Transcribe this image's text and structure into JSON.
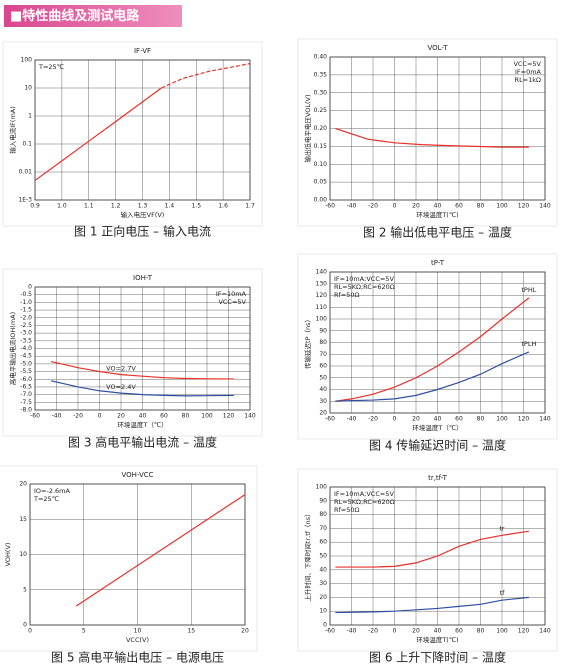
{
  "header": {
    "title": "■特性曲线及测试电路"
  },
  "chart_data": [
    {
      "type": "line",
      "title": "IF-VF",
      "caption": "图 1 正向电压 – 输入电流",
      "xlabel": "输入电压VF(V)",
      "ylabel": "输入电流IF(mA)",
      "annotations": [
        "T=25℃"
      ],
      "ylog": true,
      "grid": true,
      "x": [
        0.9,
        1.0,
        1.1,
        1.2,
        1.3,
        1.37,
        1.45,
        1.55,
        1.65,
        1.7
      ],
      "series": [
        {
          "color": "#e8302a",
          "style": "solid",
          "values": [
            0.005,
            0.025,
            0.126,
            0.63,
            3.2,
            10,
            null,
            null,
            null,
            null
          ]
        },
        {
          "color": "#e8302a",
          "style": "dashed",
          "values": [
            null,
            null,
            null,
            null,
            null,
            10,
            22,
            40,
            60,
            75
          ]
        }
      ],
      "xlim": [
        0.9,
        1.7
      ],
      "ylim": [
        0.001,
        100
      ],
      "xticks": [
        0.9,
        {
          "value": 1,
          "label": "1.0"
        },
        1.1,
        1.2,
        1.3,
        1.4,
        1.5,
        1.6,
        1.7
      ],
      "yticks": [
        {
          "value": 0.001,
          "label": "1E-3"
        },
        0.01,
        0.1,
        1,
        10,
        100
      ]
    },
    {
      "type": "line",
      "title": "VOL-T",
      "caption": "图 2 输出低电平电压 – 温度",
      "xlabel": "环境温度T(℃)",
      "ylabel": "输出低电平电压VOL(V)",
      "annotations": [
        "VCC=5V",
        "IF=0mA",
        "RL=1kΩ"
      ],
      "grid": true,
      "x": [
        -55,
        -40,
        -25,
        0,
        25,
        50,
        75,
        100,
        125
      ],
      "series": [
        {
          "color": "#e8302a",
          "values": [
            0.2,
            0.185,
            0.17,
            0.16,
            0.155,
            0.152,
            0.15,
            0.148,
            0.148
          ]
        }
      ],
      "xlim": [
        -60,
        140
      ],
      "ylim": [
        0,
        0.4
      ],
      "xticks": [
        -60,
        -40,
        -20,
        0,
        20,
        40,
        60,
        80,
        100,
        120,
        140
      ],
      "yticks": [
        {
          "value": 0,
          "label": "0.00"
        },
        0.05,
        {
          "value": 0.1,
          "label": "0.10"
        },
        0.15,
        {
          "value": 0.2,
          "label": "0.20"
        },
        0.25,
        {
          "value": 0.3,
          "label": "0.30"
        },
        0.35,
        {
          "value": 0.4,
          "label": "0.40"
        }
      ]
    },
    {
      "type": "line",
      "title": "IOH-T",
      "caption": "图 3 高电平输出电流 – 温度",
      "xlabel": "环境温度T（℃）",
      "ylabel": "高电平输出电流IOH(mA)",
      "annotations": [
        "IF=10mA",
        "VCC=5V"
      ],
      "grid": true,
      "x": [
        -45,
        -20,
        0,
        20,
        40,
        60,
        80,
        100,
        125
      ],
      "series": [
        {
          "name": "VO=2.7V",
          "color": "#e8302a",
          "values": [
            -4.85,
            -5.25,
            -5.5,
            -5.7,
            -5.8,
            -5.9,
            -5.95,
            -5.97,
            -5.98
          ]
        },
        {
          "name": "VO=2.4V",
          "color": "#2f4fa0",
          "values": [
            -6.1,
            -6.5,
            -6.75,
            -6.9,
            -7.0,
            -7.05,
            -7.08,
            -7.07,
            -7.05
          ]
        }
      ],
      "xlim": [
        -60,
        140
      ],
      "ylim": [
        -8,
        0
      ],
      "xticks": [
        -60,
        -40,
        -20,
        0,
        20,
        40,
        60,
        80,
        100,
        120,
        140
      ],
      "yticks": [
        0,
        -0.5,
        {
          "value": -1,
          "label": "-1.0"
        },
        -1.5,
        {
          "value": -2,
          "label": "-2.0"
        },
        -2.5,
        {
          "value": -3,
          "label": "-3.0"
        },
        -3.5,
        {
          "value": -4,
          "label": "-4.0"
        },
        -4.5,
        {
          "value": -5,
          "label": "-5.0"
        },
        -5.5,
        {
          "value": -6,
          "label": "-6.0"
        },
        -6.5,
        {
          "value": -7,
          "label": "-7.0"
        },
        -7.5,
        {
          "value": -8,
          "label": "-8.0"
        }
      ]
    },
    {
      "type": "line",
      "title": "tP-T",
      "caption": "图 4 传输延迟时间 – 温度",
      "xlabel": "环境温度T（℃）",
      "ylabel": "传输延迟tP（ns）",
      "annotations": [
        "IF=10mA;VCC=5V",
        "RL=5KΩ;RC=620Ω",
        "Rf=50Ω"
      ],
      "grid": true,
      "x": [
        -55,
        -40,
        -20,
        0,
        20,
        40,
        60,
        80,
        100,
        125
      ],
      "series": [
        {
          "name": "tPHL",
          "color": "#e8302a",
          "values": [
            30,
            32,
            36,
            42,
            50,
            60,
            72,
            85,
            100,
            118
          ]
        },
        {
          "name": "tPLH",
          "color": "#2f4fa0",
          "values": [
            30,
            30.5,
            31,
            32,
            35,
            40,
            46,
            53,
            62,
            72
          ]
        }
      ],
      "xlim": [
        -60,
        140
      ],
      "ylim": [
        20,
        140
      ],
      "xticks": [
        -60,
        -40,
        -20,
        0,
        20,
        40,
        60,
        80,
        100,
        120,
        140
      ],
      "yticks": [
        20,
        30,
        40,
        50,
        60,
        70,
        80,
        90,
        100,
        110,
        120,
        130,
        140
      ]
    },
    {
      "type": "line",
      "title": "VOH-VCC",
      "caption": "图 5 高电平输出电压 – 电源电压",
      "xlabel": "VCC(V)",
      "ylabel": "VOH(V)",
      "annotations": [
        "IO=-2.6mA",
        "T=25℃"
      ],
      "grid": true,
      "x": [
        4.3,
        20
      ],
      "series": [
        {
          "color": "#e8302a",
          "values": [
            2.7,
            18.5
          ]
        }
      ],
      "xlim": [
        0,
        20
      ],
      "ylim": [
        0,
        20
      ],
      "xticks": [
        0,
        5,
        10,
        15,
        20
      ],
      "yticks": [
        0,
        5,
        10,
        15,
        20
      ]
    },
    {
      "type": "line",
      "title": "tr,tf-T",
      "caption": "图 6 上升下降时间 – 温度",
      "xlabel": "环境温度T(℃)",
      "ylabel": "上升时间、下降时间tr,tf（ns）",
      "annotations": [
        "IF=10mA;VCC=5V",
        "RL=5KΩ;RC=620Ω",
        "Rf=50Ω"
      ],
      "grid": true,
      "x": [
        -55,
        -20,
        0,
        20,
        40,
        60,
        80,
        100,
        125
      ],
      "series": [
        {
          "name": "tr",
          "color": "#e8302a",
          "values": [
            42,
            42,
            42.5,
            45,
            50,
            57,
            62,
            65,
            68
          ]
        },
        {
          "name": "tf",
          "color": "#2f4fa0",
          "values": [
            9,
            9.5,
            10,
            11,
            12,
            13.5,
            15,
            18,
            20
          ]
        }
      ],
      "xlim": [
        -60,
        140
      ],
      "ylim": [
        0,
        100
      ],
      "xticks": [
        -60,
        -40,
        -20,
        0,
        20,
        40,
        60,
        80,
        100,
        120,
        140
      ],
      "yticks": [
        0,
        10,
        20,
        30,
        40,
        50,
        60,
        70,
        80,
        90,
        100
      ]
    }
  ]
}
